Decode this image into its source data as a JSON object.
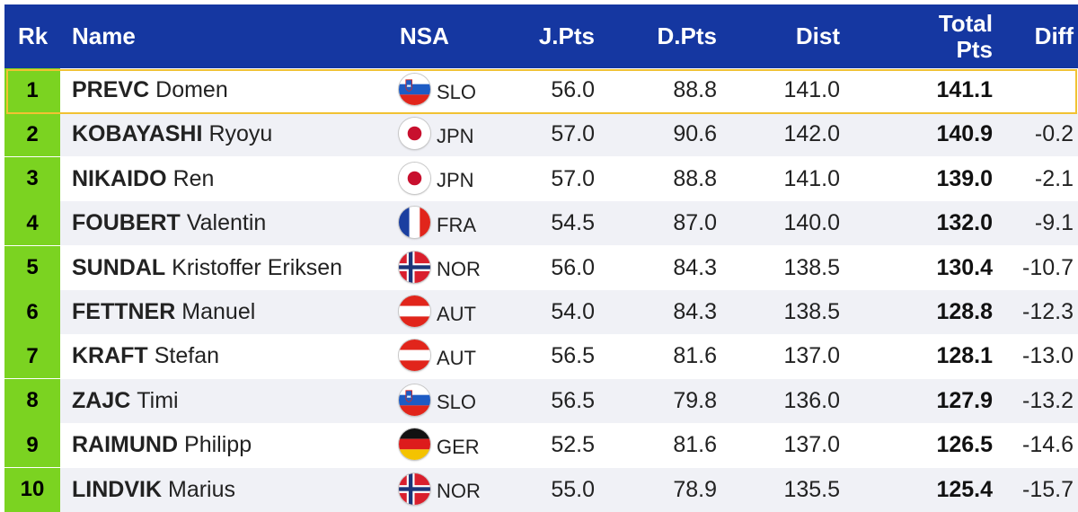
{
  "table": {
    "headers": {
      "rk": "Rk",
      "name": "Name",
      "nsa": "NSA",
      "jpts": "J.Pts",
      "dpts": "D.Pts",
      "dist": "Dist",
      "total_line1": "Total",
      "total_line2": "Pts",
      "diff": "Diff"
    },
    "colors": {
      "header_bg": "#1537a1",
      "rank_bg": "#7bd321",
      "leader_border": "#f1c232",
      "stripe_bg": "#f0f1f6"
    },
    "rows": [
      {
        "rk": "1",
        "last": "PREVC",
        "first": "Domen",
        "flag": "slovenia-flag-icon",
        "nsa": "SLO",
        "jpts": "56.0",
        "dpts": "88.8",
        "dist": "141.0",
        "total": "141.1",
        "diff": ""
      },
      {
        "rk": "2",
        "last": "KOBAYASHI",
        "first": "Ryoyu",
        "flag": "japan-flag-icon",
        "nsa": "JPN",
        "jpts": "57.0",
        "dpts": "90.6",
        "dist": "142.0",
        "total": "140.9",
        "diff": "-0.2"
      },
      {
        "rk": "3",
        "last": "NIKAIDO",
        "first": "Ren",
        "flag": "japan-flag-icon",
        "nsa": "JPN",
        "jpts": "57.0",
        "dpts": "88.8",
        "dist": "141.0",
        "total": "139.0",
        "diff": "-2.1"
      },
      {
        "rk": "4",
        "last": "FOUBERT",
        "first": "Valentin",
        "flag": "france-flag-icon",
        "nsa": "FRA",
        "jpts": "54.5",
        "dpts": "87.0",
        "dist": "140.0",
        "total": "132.0",
        "diff": "-9.1"
      },
      {
        "rk": "5",
        "last": "SUNDAL",
        "first": "Kristoffer Eriksen",
        "flag": "norway-flag-icon",
        "nsa": "NOR",
        "jpts": "56.0",
        "dpts": "84.3",
        "dist": "138.5",
        "total": "130.4",
        "diff": "-10.7"
      },
      {
        "rk": "6",
        "last": "FETTNER",
        "first": "Manuel",
        "flag": "austria-flag-icon",
        "nsa": "AUT",
        "jpts": "54.0",
        "dpts": "84.3",
        "dist": "138.5",
        "total": "128.8",
        "diff": "-12.3"
      },
      {
        "rk": "7",
        "last": "KRAFT",
        "first": "Stefan",
        "flag": "austria-flag-icon",
        "nsa": "AUT",
        "jpts": "56.5",
        "dpts": "81.6",
        "dist": "137.0",
        "total": "128.1",
        "diff": "-13.0"
      },
      {
        "rk": "8",
        "last": "ZAJC",
        "first": "Timi",
        "flag": "slovenia-flag-icon",
        "nsa": "SLO",
        "jpts": "56.5",
        "dpts": "79.8",
        "dist": "136.0",
        "total": "127.9",
        "diff": "-13.2"
      },
      {
        "rk": "9",
        "last": "RAIMUND",
        "first": "Philipp",
        "flag": "germany-flag-icon",
        "nsa": "GER",
        "jpts": "52.5",
        "dpts": "81.6",
        "dist": "137.0",
        "total": "126.5",
        "diff": "-14.6"
      },
      {
        "rk": "10",
        "last": "LINDVIK",
        "first": "Marius",
        "flag": "norway-flag-icon",
        "nsa": "NOR",
        "jpts": "55.0",
        "dpts": "78.9",
        "dist": "135.5",
        "total": "125.4",
        "diff": "-15.7"
      }
    ]
  }
}
